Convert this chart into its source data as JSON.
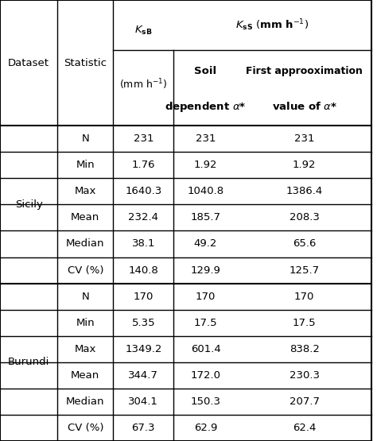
{
  "rows": [
    [
      "Sicily",
      "N",
      "231",
      "231",
      "231"
    ],
    [
      "",
      "Min",
      "1.76",
      "1.92",
      "1.92"
    ],
    [
      "",
      "Max",
      "1640.3",
      "1040.8",
      "1386.4"
    ],
    [
      "",
      "Mean",
      "232.4",
      "185.7",
      "208.3"
    ],
    [
      "",
      "Median",
      "38.1",
      "49.2",
      "65.6"
    ],
    [
      "",
      "CV (%)",
      "140.8",
      "129.9",
      "125.7"
    ],
    [
      "Burundi",
      "N",
      "170",
      "170",
      "170"
    ],
    [
      "",
      "Min",
      "5.35",
      "17.5",
      "17.5"
    ],
    [
      "",
      "Max",
      "1349.2",
      "601.4",
      "838.2"
    ],
    [
      "",
      "Mean",
      "344.7",
      "172.0",
      "230.3"
    ],
    [
      "",
      "Median",
      "304.1",
      "150.3",
      "207.7"
    ],
    [
      "",
      "CV (%)",
      "67.3",
      "62.9",
      "62.4"
    ]
  ],
  "background_color": "#ffffff",
  "text_color": "#000000",
  "figwidth": 4.74,
  "figheight": 5.55,
  "dpi": 100
}
